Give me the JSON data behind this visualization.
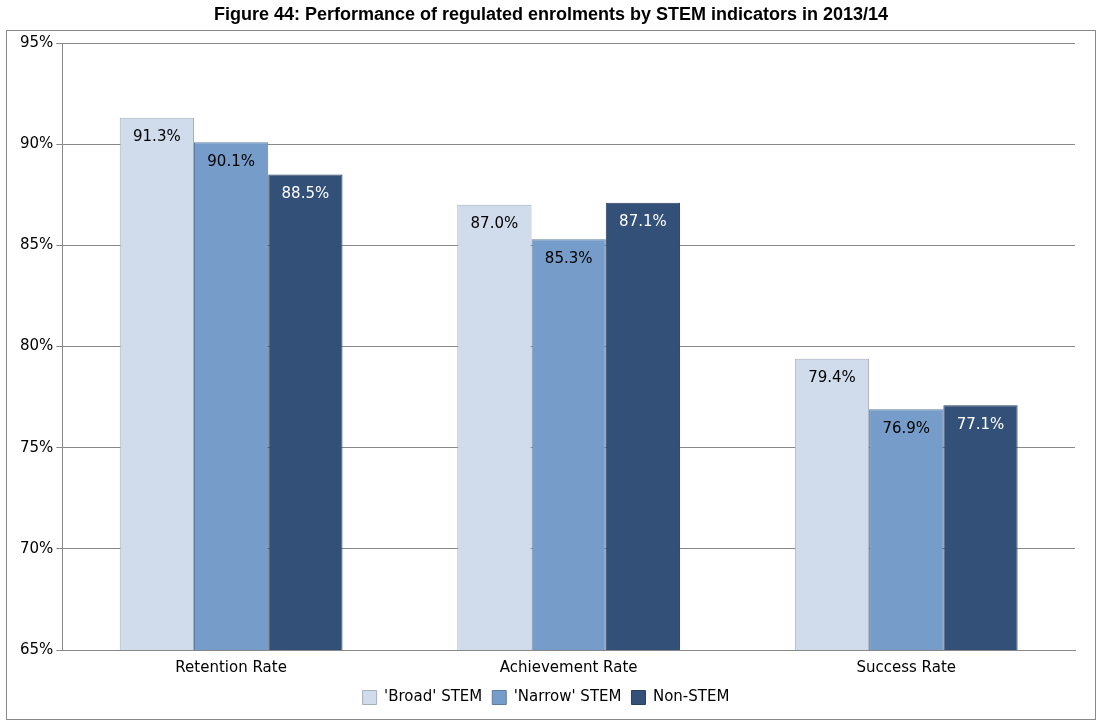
{
  "chart_data": {
    "type": "bar",
    "title": "Figure 44: Performance of regulated enrolments by STEM indicators in 2013/14",
    "categories": [
      "Retention Rate",
      "Achievement Rate",
      "Success Rate"
    ],
    "series": [
      {
        "name": "'Broad' STEM",
        "color": "#d0dcec",
        "values": [
          91.3,
          87.0,
          79.4
        ],
        "value_labels": [
          "91.3%",
          "87.0%",
          "79.4%"
        ]
      },
      {
        "name": "'Narrow' STEM",
        "color": "#769dc9",
        "values": [
          90.1,
          85.3,
          76.9
        ],
        "value_labels": [
          "90.1%",
          "85.3%",
          "76.9%"
        ]
      },
      {
        "name": "Non-STEM",
        "color": "#325078",
        "values": [
          88.5,
          87.1,
          77.1
        ],
        "value_labels": [
          "88.5%",
          "87.1%",
          "77.1%"
        ]
      }
    ],
    "ylim": [
      65,
      95
    ],
    "yticks": [
      {
        "value": 65,
        "label": "65%"
      },
      {
        "value": 70,
        "label": "70%"
      },
      {
        "value": 75,
        "label": "75%"
      },
      {
        "value": 80,
        "label": "80%"
      },
      {
        "value": 85,
        "label": "85%"
      },
      {
        "value": 90,
        "label": "90%"
      },
      {
        "value": 95,
        "label": "95%"
      }
    ],
    "grid": "y",
    "legend": "bottom"
  }
}
